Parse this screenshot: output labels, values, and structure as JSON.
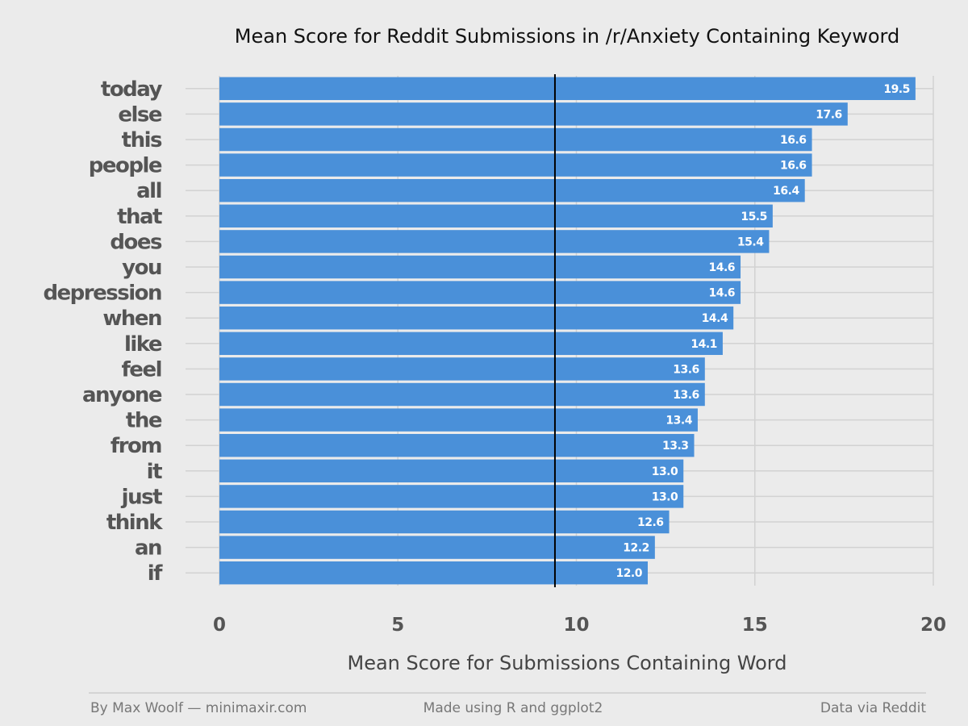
{
  "chart_data": {
    "type": "bar",
    "orientation": "horizontal",
    "title": "Mean Score for Reddit Submissions in /r/Anxiety Containing Keyword",
    "xlabel": "Mean Score for Submissions Containing Word",
    "ylabel": "",
    "categories": [
      "today",
      "else",
      "this",
      "people",
      "all",
      "that",
      "does",
      "you",
      "depression",
      "when",
      "like",
      "feel",
      "anyone",
      "the",
      "from",
      "it",
      "just",
      "think",
      "an",
      "if"
    ],
    "values": [
      19.5,
      17.6,
      16.6,
      16.6,
      16.4,
      15.5,
      15.4,
      14.6,
      14.6,
      14.4,
      14.1,
      13.6,
      13.6,
      13.4,
      13.3,
      13.0,
      13.0,
      12.6,
      12.2,
      12.0
    ],
    "value_labels": [
      "19.5",
      "17.6",
      "16.6",
      "16.6",
      "16.4",
      "15.5",
      "15.4",
      "14.6",
      "14.6",
      "14.4",
      "14.1",
      "13.6",
      "13.6",
      "13.4",
      "13.3",
      "13.0",
      "13.0",
      "12.6",
      "12.2",
      "12.0"
    ],
    "xlim": [
      0,
      20
    ],
    "xticks": [
      0,
      5,
      10,
      15,
      20
    ],
    "xtick_labels": [
      "0",
      "5",
      "10",
      "15",
      "20"
    ],
    "reference_line": 9.4,
    "grid": true,
    "legend": "none",
    "colors": {
      "bar": "#4a90d9",
      "background": "#ebebeb",
      "grid": "#d2d2d2",
      "reference": "#000000"
    }
  },
  "footer": {
    "left": "By Max Woolf — minimaxir.com",
    "center": "Made using R and ggplot2",
    "right": "Data via Reddit"
  }
}
